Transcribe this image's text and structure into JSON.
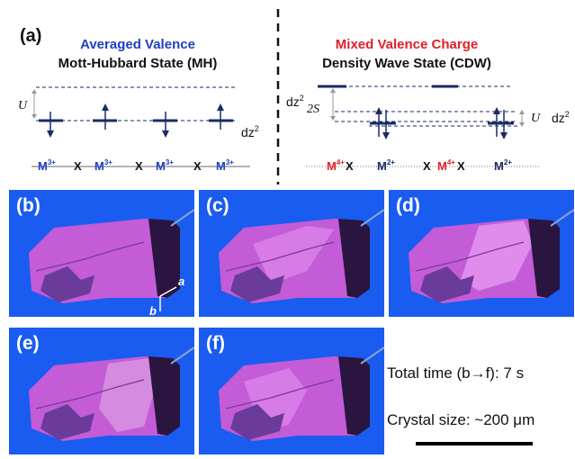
{
  "scheme": {
    "panel_label": "(a)",
    "left": {
      "title_colored": "Averaged Valence",
      "title": "Mott-Hubbard State (MH)",
      "u_label": "U",
      "orbital_label": "dz2",
      "chain": [
        "M3+",
        "X",
        "M3+",
        "X",
        "M3+",
        "X",
        "M3+"
      ]
    },
    "right": {
      "title_colored": "Mixed Valence Charge",
      "title": "Density Wave State (CDW)",
      "orbital_label_left": "dz2",
      "gap_label": "2S",
      "u_label": "U",
      "orbital_label_right": "dz2",
      "chain": [
        "M4+",
        "X",
        "M2+",
        "X",
        "M4+",
        "X",
        "M2+"
      ]
    },
    "colors": {
      "left_title": "#1f3fbf",
      "right_title": "#e0202a",
      "levels": "#1a2a66",
      "panel_bg": "#1a5cf0",
      "crystal": "#c35cd6"
    }
  },
  "panels": [
    {
      "label": "(b)"
    },
    {
      "label": "(c)"
    },
    {
      "label": "(d)"
    },
    {
      "label": "(e)"
    },
    {
      "label": "(f)"
    }
  ],
  "axes": {
    "a": "a",
    "b": "b"
  },
  "info": {
    "total_time": "Total time (b→f): 7 s",
    "crystal_size": "Crystal size: ~200 μm"
  }
}
